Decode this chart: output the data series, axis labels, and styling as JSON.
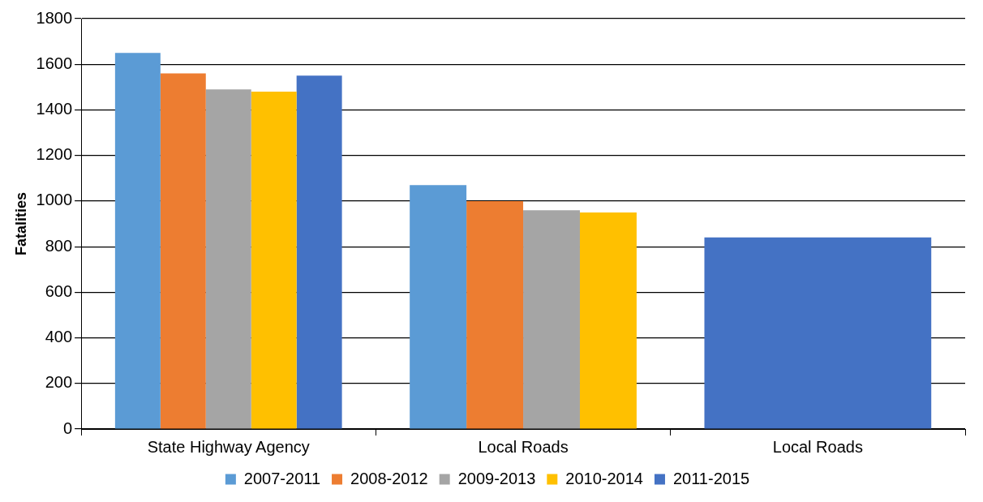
{
  "chart_data": {
    "type": "bar",
    "ylabel": "Fatalities",
    "categories": [
      "State Highway Agency",
      "Local Roads",
      "Local Roads"
    ],
    "series": [
      {
        "name": "2007-2011",
        "color": "#5b9bd5",
        "values": [
          1650,
          1070,
          null
        ]
      },
      {
        "name": "2008-2012",
        "color": "#ed7d31",
        "values": [
          1560,
          1000,
          null
        ]
      },
      {
        "name": "2009-2013",
        "color": "#a5a5a5",
        "values": [
          1490,
          960,
          null
        ]
      },
      {
        "name": "2010-2014",
        "color": "#ffc000",
        "values": [
          1480,
          950,
          null
        ]
      },
      {
        "name": "2011-2015",
        "color": "#4472c4",
        "values": [
          1550,
          null,
          840
        ]
      }
    ],
    "ylim": [
      0,
      1800
    ],
    "yticks": [
      0,
      200,
      400,
      600,
      800,
      1000,
      1200,
      1400,
      1600,
      1800
    ],
    "grid": "y",
    "legend": "bottom"
  }
}
